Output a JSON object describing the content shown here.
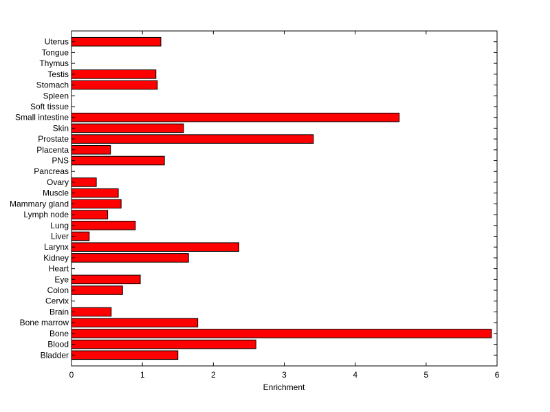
{
  "chart_data": {
    "type": "bar",
    "orientation": "horizontal",
    "xlabel": "Enrichment",
    "ylabel": "",
    "title": "",
    "xlim": [
      0,
      6
    ],
    "xticks": [
      0,
      1,
      2,
      3,
      4,
      5,
      6
    ],
    "grid": false,
    "bar_color": "#ff0000",
    "categories": [
      "Bladder",
      "Blood",
      "Bone",
      "Bone marrow",
      "Brain",
      "Cervix",
      "Colon",
      "Eye",
      "Heart",
      "Kidney",
      "Larynx",
      "Liver",
      "Lung",
      "Lymph node",
      "Mammary gland",
      "Muscle",
      "Ovary",
      "Pancreas",
      "PNS",
      "Placenta",
      "Prostate",
      "Skin",
      "Small intestine",
      "Soft tissue",
      "Spleen",
      "Stomach",
      "Testis",
      "Thymus",
      "Tongue",
      "Uterus"
    ],
    "values": [
      1.5,
      2.6,
      5.92,
      1.78,
      0.56,
      0,
      0.72,
      0.97,
      0,
      1.65,
      2.36,
      0.25,
      0.9,
      0.51,
      0.7,
      0.66,
      0.35,
      0,
      1.31,
      0.55,
      3.41,
      1.58,
      4.62,
      0,
      0,
      1.21,
      1.19,
      0,
      0,
      1.26
    ]
  }
}
